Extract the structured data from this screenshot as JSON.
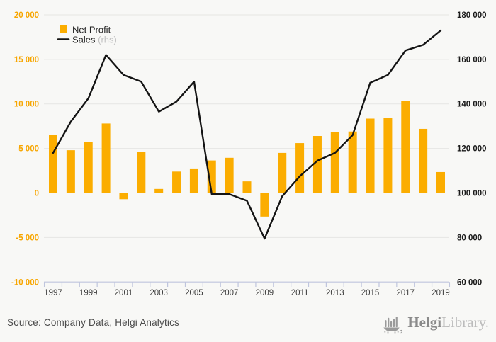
{
  "colors": {
    "background": "#f8f8f6",
    "bar": "#FBAD00",
    "left_axis_label": "#F7A600",
    "right_axis_label": "#1a1a1a",
    "x_axis_label": "#3b3b3b",
    "line": "#141414",
    "gridline": "#e6e6e3",
    "zero_line": "#d9d9d6",
    "axis_line": "#bfc5dd",
    "legend_text": "#1f1f1f",
    "legend_muted": "#c2c2c2",
    "source_text": "#4c4c4c",
    "logo_gray": "#9a9a9a"
  },
  "legend": {
    "net_profit_label": "Net Profit",
    "sales_label": "Sales",
    "sales_suffix": "(rhs)",
    "position": "top-left"
  },
  "chart_data": {
    "type": "bar",
    "title": "",
    "xlabel": "",
    "ylabel": "",
    "grid": true,
    "categories": [
      1997,
      1998,
      1999,
      2000,
      2001,
      2002,
      2003,
      2004,
      2005,
      2006,
      2007,
      2008,
      2009,
      2010,
      2011,
      2012,
      2013,
      2014,
      2015,
      2016,
      2017,
      2018,
      2019
    ],
    "series": [
      {
        "name": "Net Profit",
        "type": "bar",
        "axis": "left",
        "values": [
          6500,
          4800,
          5700,
          7800,
          -700,
          4650,
          450,
          2400,
          2750,
          3650,
          3950,
          1300,
          -2650,
          4500,
          5600,
          6400,
          6800,
          6900,
          8350,
          8450,
          10300,
          7200,
          2350
        ]
      },
      {
        "name": "Sales (rhs)",
        "type": "line",
        "axis": "right",
        "values": [
          118000,
          132000,
          142500,
          162000,
          153000,
          150000,
          136500,
          141000,
          150000,
          99500,
          99500,
          96500,
          79500,
          98500,
          107500,
          114500,
          118000,
          126000,
          149500,
          153000,
          164000,
          166500,
          173000
        ]
      }
    ],
    "left_axis": {
      "min": -10000,
      "max": 20000,
      "tick_values": [
        20000,
        15000,
        10000,
        5000,
        0,
        -5000,
        -10000
      ],
      "tick_labels": [
        "20 000",
        "15 000",
        "10 000",
        "5 000",
        "0",
        "-5 000",
        "-10 000"
      ]
    },
    "right_axis": {
      "min": 60000,
      "max": 180000,
      "tick_values": [
        180000,
        160000,
        140000,
        120000,
        100000,
        80000,
        60000
      ],
      "tick_labels": [
        "180 000",
        "160 000",
        "140 000",
        "120 000",
        "100 000",
        "80 000",
        "60 000"
      ]
    },
    "x_tick_labels": [
      "1997",
      "1999",
      "2001",
      "2003",
      "2005",
      "2007",
      "2009",
      "2011",
      "2013",
      "2015",
      "2017",
      "2019"
    ]
  },
  "source": "Source: Company Data, Helgi Analytics",
  "logo": {
    "helgi": "Helgi",
    "library": "Library."
  }
}
